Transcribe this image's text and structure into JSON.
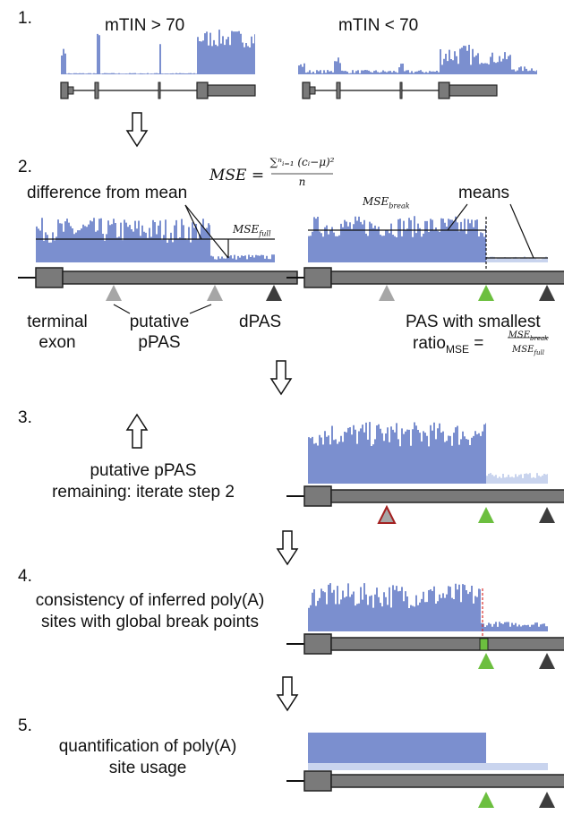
{
  "steps": [
    {
      "number": "1."
    },
    {
      "number": "2."
    },
    {
      "number": "3."
    },
    {
      "number": "4."
    },
    {
      "number": "5."
    }
  ],
  "step1": {
    "left_title": "mTIN > 70",
    "right_title": "mTIN < 70"
  },
  "step2": {
    "mse_lhs": "MSE =",
    "mse_numerator": "∑ⁿᵢ₌₁ (cᵢ−μ)²",
    "mse_denominator": "n",
    "difference_label": "difference from mean",
    "mse_full_label": "MSE",
    "mse_full_sub": "full",
    "mse_break_label": "MSE",
    "mse_break_sub": "break",
    "means_label": "means",
    "terminal_exon_line1": "terminal",
    "terminal_exon_line2": "exon",
    "putative_line1": "putative",
    "putative_line2": "pPAS",
    "dpas_label": "dPAS",
    "pas_smallest": "PAS with smallest",
    "ratio_label": "ratio",
    "ratio_sub": "MSE",
    "ratio_eq": "=",
    "ratio_num": "MSE",
    "ratio_num_sub": "break",
    "ratio_den": "MSE",
    "ratio_den_sub": "full"
  },
  "step3": {
    "line1": "putative pPAS",
    "line2": "remaining: iterate step 2"
  },
  "step4": {
    "line1": "consistency of inferred poly(A)",
    "line2": "sites with global break points"
  },
  "step5": {
    "line1": "quantification of poly(A)",
    "line2": "site usage"
  },
  "colors": {
    "coverage": "#7b8fcf",
    "coverage_light": "#c9d4ee",
    "gene": "#7a7a7a",
    "gene_stroke": "#222222",
    "pas_gray": "#a6a6a6",
    "pas_dark": "#3d3d3d",
    "pas_green": "#6cbf3f",
    "pas_rejected_border": "#a32020",
    "break_line": "#d9302c"
  }
}
